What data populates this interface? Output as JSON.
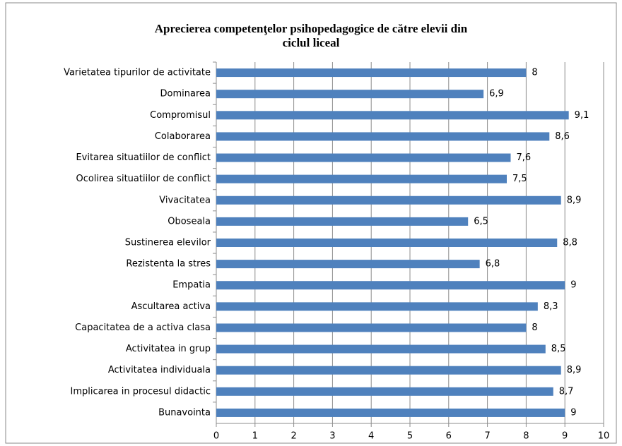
{
  "chart_data": {
    "type": "bar",
    "orientation": "horizontal",
    "title": [
      "Aprecierea competenţelor psihopedagogice de către elevii din",
      "ciclul liceal"
    ],
    "categories": [
      "Varietatea tipurilor de activitate",
      "Dominarea",
      "Compromisul",
      "Colaborarea",
      "Evitarea situatiilor de conflict",
      "Ocolirea situatiilor de conflict",
      "Vivacitatea",
      "Oboseala",
      "Sustinerea elevilor",
      "Rezistenta la stres",
      "Empatia",
      "Ascultarea activa",
      "Capacitatea de a activa clasa",
      "Activitatea in grup",
      "Activitatea individuala",
      "Implicarea in procesul didactic",
      "Bunavointa"
    ],
    "values": [
      8,
      6.9,
      9.1,
      8.6,
      7.6,
      7.5,
      8.9,
      6.5,
      8.8,
      6.8,
      9,
      8.3,
      8,
      8.5,
      8.9,
      8.7,
      9
    ],
    "value_labels": [
      "8",
      "6,9",
      "9,1",
      "8,6",
      "7,6",
      "7,5",
      "8,9",
      "6,5",
      "8,8",
      "6,8",
      "9",
      "8,3",
      "8",
      "8,5",
      "8,9",
      "8,7",
      "9"
    ],
    "color": "#4f81bd",
    "xlim": [
      0,
      10
    ],
    "xticks": [
      0,
      1,
      2,
      3,
      4,
      5,
      6,
      7,
      8,
      9,
      10
    ],
    "grid": true
  }
}
